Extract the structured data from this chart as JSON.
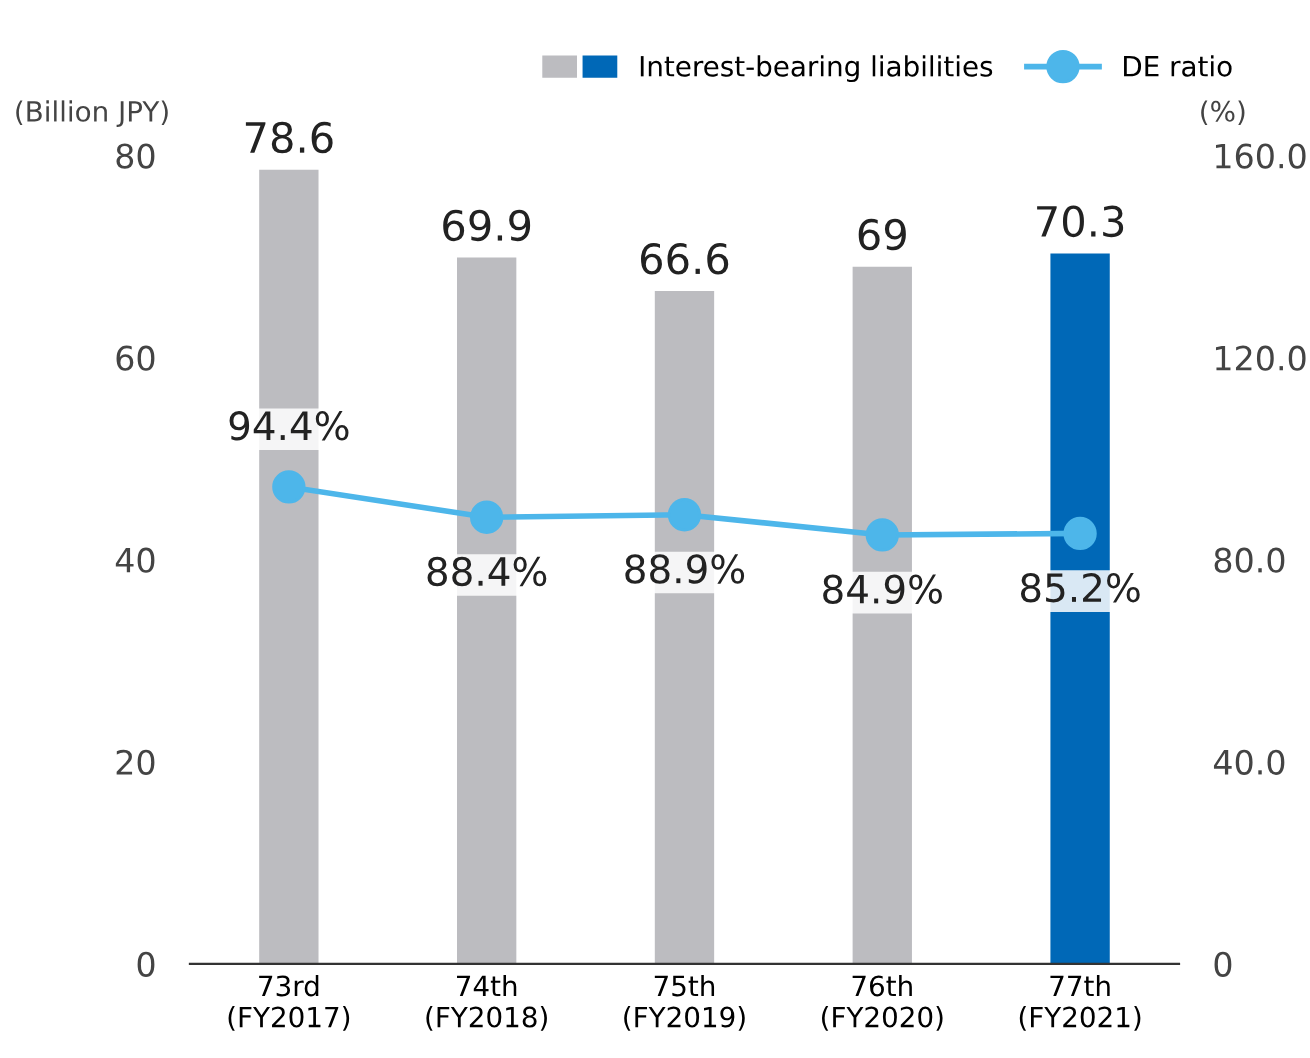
{
  "chart_data": {
    "type": "bar",
    "categories": [
      "73rd\n(FY2017)",
      "74th\n(FY2018)",
      "75th\n(FY2019)",
      "76th\n(FY2020)",
      "77th\n(FY2021)"
    ],
    "ylabel": "(Billion JPY)",
    "y2label": "(%)",
    "series": [
      {
        "name": "Interest-bearing liabilities",
        "colors": [
          "#bcbcc0",
          "#bcbcc0",
          "#bcbcc0",
          "#bcbcc0",
          "#0068b7"
        ],
        "values": [
          78.6,
          69.9,
          66.6,
          69,
          70.3
        ],
        "value_labels": [
          "78.6",
          "69.9",
          "66.6",
          "69",
          "70.3"
        ]
      },
      {
        "name": "DE ratio",
        "type": "line",
        "axis": "y2",
        "color": "#4db6ea",
        "marker": "circle",
        "values": [
          94.4,
          88.4,
          88.9,
          84.9,
          85.2
        ],
        "value_labels": [
          "94.4%",
          "88.4%",
          "88.9%",
          "84.9%",
          "85.2%"
        ]
      }
    ],
    "ylim": [
      0,
      80
    ],
    "yticks": [
      0,
      20,
      40,
      60,
      80
    ],
    "y2lim": [
      0,
      160
    ],
    "y2ticks": [
      0,
      {
        "value": 40,
        "label": "40.0"
      },
      {
        "value": 80,
        "label": "80.0"
      },
      {
        "value": 120,
        "label": "120.0"
      },
      {
        "value": 160,
        "label": "160.0"
      }
    ],
    "grid": false,
    "legend": "top right"
  }
}
